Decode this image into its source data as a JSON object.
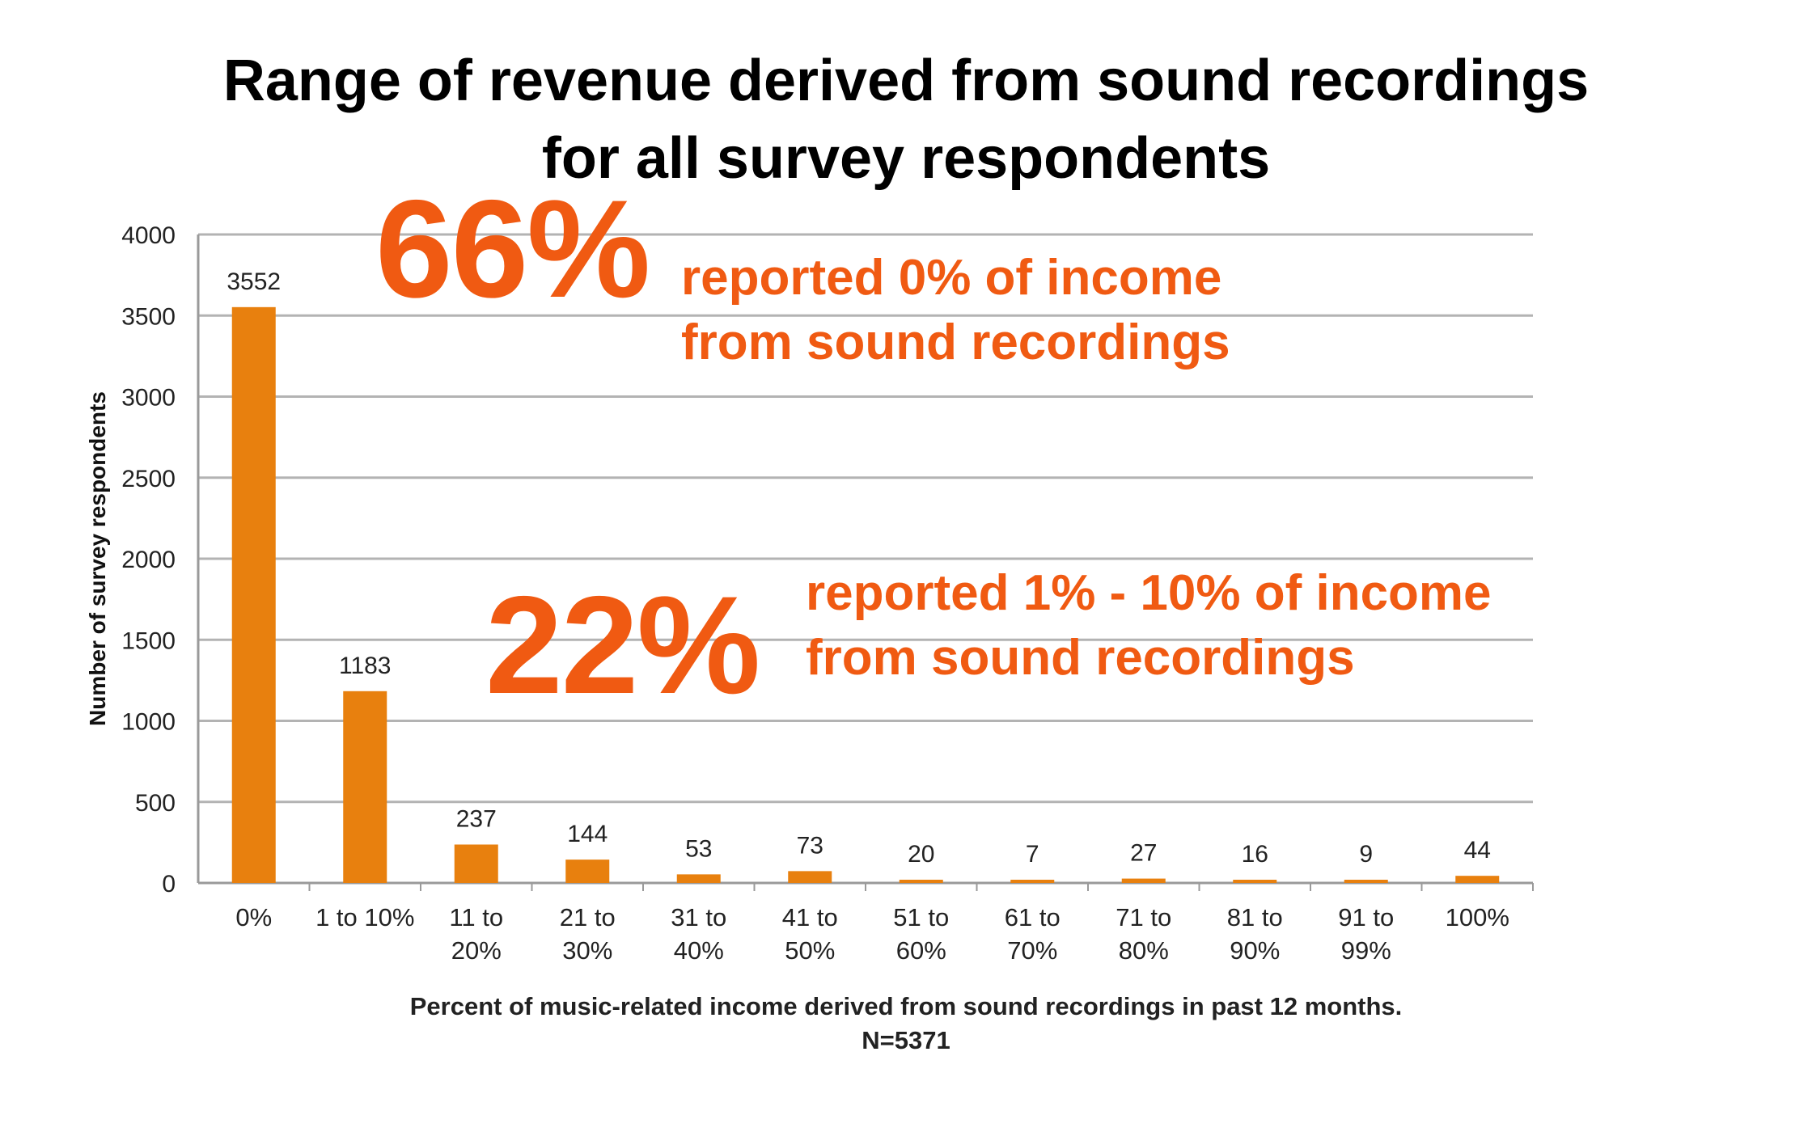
{
  "title": {
    "line1": "Range of revenue derived from sound recordings",
    "line2": "for all survey respondents"
  },
  "callouts": [
    {
      "pct": "66%",
      "line1": "reported 0% of income",
      "line2": "from sound recordings"
    },
    {
      "pct": "22%",
      "line1": "reported 1% - 10% of income",
      "line2": "from sound recordings"
    }
  ],
  "colors": {
    "bar": "#e8800e",
    "callout": "#f05a12",
    "grid": "#b3b3b3"
  },
  "chart_data": {
    "type": "bar",
    "title": "Range of revenue derived from sound recordings for all survey respondents",
    "xlabel": "Percent of music-related income derived from sound recordings in past 12 months.",
    "xlabel_note": "N=5371",
    "ylabel": "Number of survey respondents",
    "ylim": [
      0,
      4000
    ],
    "yticks": [
      0,
      500,
      1000,
      1500,
      2000,
      2500,
      3000,
      3500,
      4000
    ],
    "grid": true,
    "categories": [
      [
        "0%"
      ],
      [
        "1 to 10%"
      ],
      [
        "11 to",
        "20%"
      ],
      [
        "21 to",
        "30%"
      ],
      [
        "31 to",
        "40%"
      ],
      [
        "41 to",
        "50%"
      ],
      [
        "51 to",
        "60%"
      ],
      [
        "61 to",
        "70%"
      ],
      [
        "71 to",
        "80%"
      ],
      [
        "81 to",
        "90%"
      ],
      [
        "91 to",
        "99%"
      ],
      [
        "100%"
      ]
    ],
    "values": [
      3552,
      1183,
      237,
      144,
      53,
      73,
      20,
      7,
      27,
      16,
      9,
      44
    ]
  }
}
